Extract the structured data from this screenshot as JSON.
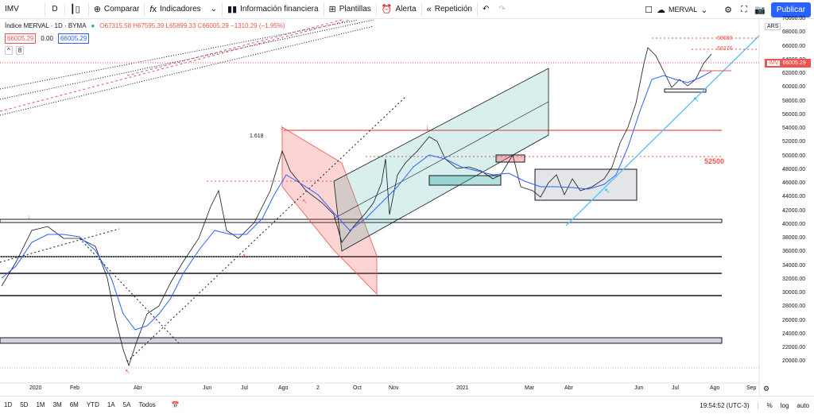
{
  "toolbar": {
    "symbol": "IMV",
    "interval": "D",
    "compare": "Comparar",
    "indicators": "Indicadores",
    "financials": "Información financiera",
    "templates": "Plantillas",
    "alert": "Alerta",
    "replay": "Repetición",
    "layout_name": "MERVAL",
    "publish": "Publicar"
  },
  "legend": {
    "title": "Índice MERVAL · 1D · BYMA",
    "ohlc": "O67315.58 H67595.39 L65899.33 C66005.29 −1310.29 (−1.95%)",
    "tag_bid": "66005.29",
    "tag_spread": "0.00",
    "tag_ask": "66005.29",
    "collapse": "^",
    "indicator_count": "8"
  },
  "price_axis": {
    "currency": "ARS",
    "labels": [
      "70000.00",
      "68000.00",
      "66000.00",
      "64000.00",
      "62000.00",
      "60000.00",
      "58000.00",
      "56000.00",
      "54000.00",
      "52000.00",
      "50000.00",
      "48000.00",
      "46000.00",
      "44000.00",
      "42000.00",
      "40000.00",
      "38000.00",
      "36000.00",
      "34000.00",
      "32000.00",
      "30000.00",
      "28000.00",
      "26000.00",
      "24000.00",
      "22000.00",
      "20000.00"
    ],
    "current_symbol": "IMV",
    "current_price": "66005.29"
  },
  "time_axis": {
    "labels": [
      "2020",
      "Feb",
      "Abr",
      "Jun",
      "Jul",
      "Ago",
      "2",
      "Oct",
      "Nov",
      "2021",
      "Mar",
      "Abr",
      "Jun",
      "Jul",
      "Ago",
      "Sep"
    ]
  },
  "annotations": {
    "fib": "1.618",
    "level_52500": "52500",
    "level_69688": "69688",
    "level_68376": "68376"
  },
  "bottombar": {
    "ranges": [
      "1D",
      "5D",
      "1M",
      "3M",
      "6M",
      "YTD",
      "1A",
      "5A",
      "Todos"
    ],
    "time": "19:54:52 (UTC-3)",
    "percent": "%",
    "log": "log",
    "auto": "auto"
  },
  "colors": {
    "up": "#26a69a",
    "down": "#ef5350",
    "ma": "#2962ff",
    "accent": "#2962ff"
  }
}
